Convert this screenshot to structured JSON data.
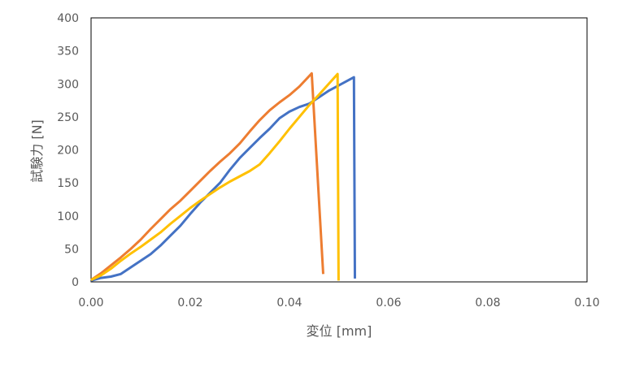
{
  "chart_data": {
    "type": "line",
    "title": "",
    "xlabel": "変位 [mm]",
    "ylabel": "試験力 [N]",
    "xlim": [
      0,
      0.1
    ],
    "ylim": [
      0,
      400
    ],
    "x_ticks": [
      0,
      0.02,
      0.04,
      0.06,
      0.08,
      0.1
    ],
    "x_tick_labels": [
      "0.00",
      "0.02",
      "0.04",
      "0.06",
      "0.08",
      "0.10"
    ],
    "y_ticks": [
      0,
      50,
      100,
      150,
      200,
      250,
      300,
      350,
      400
    ],
    "y_tick_labels": [
      "0",
      "50",
      "100",
      "150",
      "200",
      "250",
      "300",
      "350",
      "400"
    ],
    "grid": false,
    "legend": "none",
    "series": [
      {
        "color": "#4472C4",
        "points": [
          [
            0,
            2
          ],
          [
            0.002,
            6
          ],
          [
            0.004,
            8
          ],
          [
            0.006,
            12
          ],
          [
            0.008,
            22
          ],
          [
            0.01,
            32
          ],
          [
            0.012,
            42
          ],
          [
            0.014,
            55
          ],
          [
            0.016,
            70
          ],
          [
            0.018,
            85
          ],
          [
            0.02,
            103
          ],
          [
            0.022,
            120
          ],
          [
            0.024,
            135
          ],
          [
            0.026,
            150
          ],
          [
            0.028,
            170
          ],
          [
            0.03,
            188
          ],
          [
            0.032,
            203
          ],
          [
            0.034,
            218
          ],
          [
            0.036,
            232
          ],
          [
            0.038,
            248
          ],
          [
            0.04,
            258
          ],
          [
            0.042,
            265
          ],
          [
            0.044,
            270
          ],
          [
            0.046,
            280
          ],
          [
            0.048,
            290
          ],
          [
            0.05,
            298
          ],
          [
            0.053,
            310
          ],
          [
            0.0532,
            5
          ]
        ]
      },
      {
        "color": "#ED7D31",
        "points": [
          [
            0,
            3
          ],
          [
            0.002,
            13
          ],
          [
            0.004,
            25
          ],
          [
            0.006,
            37
          ],
          [
            0.008,
            50
          ],
          [
            0.01,
            64
          ],
          [
            0.012,
            80
          ],
          [
            0.014,
            95
          ],
          [
            0.016,
            110
          ],
          [
            0.018,
            123
          ],
          [
            0.02,
            138
          ],
          [
            0.022,
            153
          ],
          [
            0.024,
            168
          ],
          [
            0.026,
            182
          ],
          [
            0.028,
            195
          ],
          [
            0.03,
            210
          ],
          [
            0.032,
            228
          ],
          [
            0.034,
            245
          ],
          [
            0.036,
            260
          ],
          [
            0.038,
            272
          ],
          [
            0.04,
            283
          ],
          [
            0.042,
            296
          ],
          [
            0.0445,
            316
          ],
          [
            0.0468,
            12
          ]
        ]
      },
      {
        "color": "#FFC000",
        "points": [
          [
            0,
            3
          ],
          [
            0.002,
            10
          ],
          [
            0.004,
            20
          ],
          [
            0.006,
            32
          ],
          [
            0.008,
            43
          ],
          [
            0.01,
            53
          ],
          [
            0.012,
            64
          ],
          [
            0.014,
            75
          ],
          [
            0.016,
            88
          ],
          [
            0.018,
            100
          ],
          [
            0.02,
            112
          ],
          [
            0.022,
            123
          ],
          [
            0.024,
            133
          ],
          [
            0.026,
            143
          ],
          [
            0.028,
            152
          ],
          [
            0.03,
            160
          ],
          [
            0.032,
            168
          ],
          [
            0.034,
            178
          ],
          [
            0.036,
            195
          ],
          [
            0.038,
            213
          ],
          [
            0.04,
            232
          ],
          [
            0.042,
            250
          ],
          [
            0.044,
            268
          ],
          [
            0.046,
            284
          ],
          [
            0.0497,
            315
          ],
          [
            0.0499,
            2
          ]
        ]
      }
    ]
  }
}
